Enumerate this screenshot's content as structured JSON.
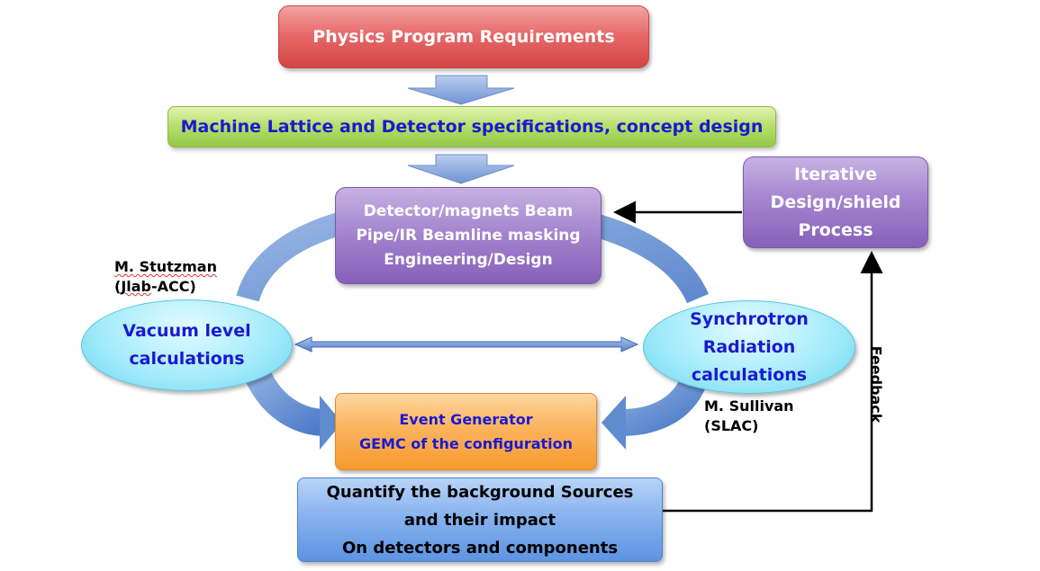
{
  "boxes": {
    "physics": "Physics Program Requirements",
    "lattice": "Machine Lattice and Detector specifications, concept design",
    "detector": [
      "Detector/magnets Beam",
      "Pipe/IR Beamline masking",
      "Engineering/Design"
    ],
    "iterative": [
      "Iterative",
      "Design/shield",
      "Process"
    ],
    "vacuum": [
      "Vacuum level",
      "calculations"
    ],
    "synchrotron": [
      "Synchrotron",
      "Radiation",
      "calculations"
    ],
    "event": [
      "Event Generator",
      "GEMC of the configuration"
    ],
    "quantify": [
      "Quantify the background Sources",
      "and their impact",
      "On detectors and components"
    ]
  },
  "labels": {
    "stutzman_name": "M. Stutzman",
    "stutzman_org_pre": "(",
    "stutzman_org_word": "Jlab",
    "stutzman_org_post": "-ACC)",
    "sullivan_name": "M. Sullivan",
    "sullivan_org": "(SLAC)",
    "feedback": "Feedback"
  },
  "colors": {
    "arrow_blue": "#7f9fd4",
    "arc_blue": "#6a93cf",
    "title_blue": "#1a1ad0"
  }
}
